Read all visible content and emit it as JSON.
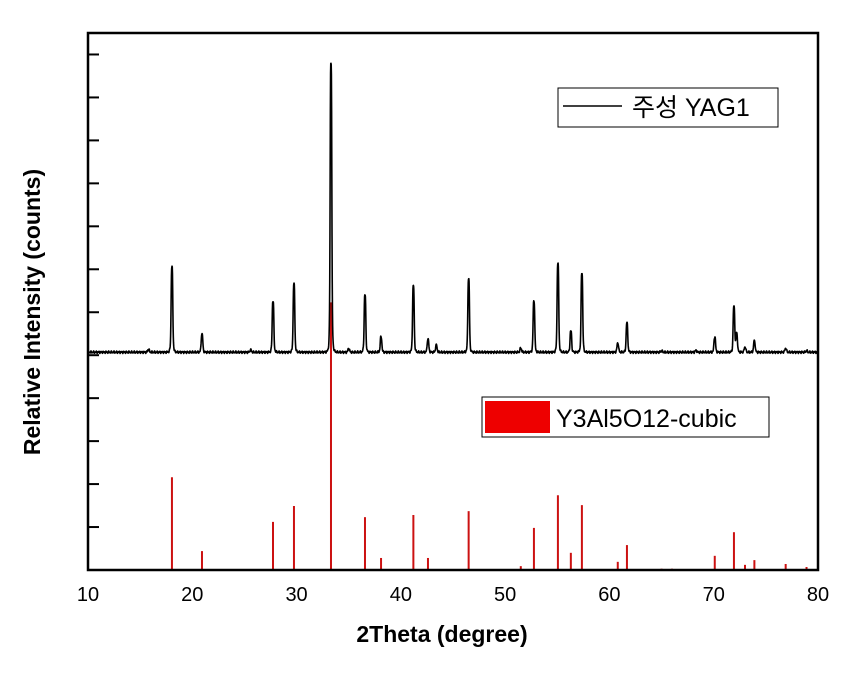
{
  "chart_data": {
    "type": "line",
    "title": "",
    "xlabel": "2Theta (degree)",
    "ylabel": "Relative Intensity (counts)",
    "xlim": [
      10,
      80
    ],
    "ylim": [
      0,
      12.5
    ],
    "x_ticks": [
      "10",
      "20",
      "30",
      "40",
      "50",
      "60",
      "70",
      "80"
    ],
    "y_tick_labels_shown": false,
    "grid": false,
    "legend_placement": "top-right and middle-right",
    "series": [
      {
        "name": "주성 YAG1",
        "kind": "line",
        "color": "#000000",
        "baseline": 5.07,
        "peaks": [
          {
            "x": 15.8,
            "y": 5.13
          },
          {
            "x": 18.05,
            "y": 7.05
          },
          {
            "x": 20.93,
            "y": 5.49
          },
          {
            "x": 25.6,
            "y": 5.12
          },
          {
            "x": 27.74,
            "y": 6.26
          },
          {
            "x": 29.75,
            "y": 6.65
          },
          {
            "x": 33.3,
            "y": 11.81
          },
          {
            "x": 35.0,
            "y": 5.15
          },
          {
            "x": 36.56,
            "y": 6.4
          },
          {
            "x": 38.1,
            "y": 5.42
          },
          {
            "x": 41.2,
            "y": 6.6
          },
          {
            "x": 42.6,
            "y": 5.37
          },
          {
            "x": 43.4,
            "y": 5.23
          },
          {
            "x": 46.5,
            "y": 6.77
          },
          {
            "x": 51.5,
            "y": 5.16
          },
          {
            "x": 52.76,
            "y": 6.26
          },
          {
            "x": 55.06,
            "y": 7.12
          },
          {
            "x": 56.3,
            "y": 5.56
          },
          {
            "x": 57.36,
            "y": 6.91
          },
          {
            "x": 60.8,
            "y": 5.28
          },
          {
            "x": 61.68,
            "y": 5.74
          },
          {
            "x": 65.0,
            "y": 5.1
          },
          {
            "x": 68.3,
            "y": 5.11
          },
          {
            "x": 70.1,
            "y": 5.42
          },
          {
            "x": 71.94,
            "y": 6.12
          },
          {
            "x": 72.2,
            "y": 5.5
          },
          {
            "x": 73.0,
            "y": 5.19
          },
          {
            "x": 73.9,
            "y": 5.33
          },
          {
            "x": 76.9,
            "y": 5.16
          },
          {
            "x": 78.9,
            "y": 5.1
          }
        ]
      },
      {
        "name": "Y3Al5O12-cubic",
        "kind": "stick",
        "color": "#e00000",
        "x": [
          18.05,
          20.93,
          27.74,
          29.75,
          33.3,
          36.56,
          38.1,
          41.2,
          42.6,
          46.5,
          51.5,
          52.76,
          55.06,
          56.3,
          57.36,
          60.8,
          61.68,
          65.0,
          66.0,
          70.1,
          71.94,
          73.0,
          73.9,
          76.9,
          78.9
        ],
        "values": [
          2.16,
          0.44,
          1.12,
          1.49,
          6.23,
          1.23,
          0.28,
          1.28,
          0.28,
          1.37,
          0.09,
          0.98,
          1.74,
          0.4,
          1.51,
          0.19,
          0.58,
          0.03,
          0.03,
          0.33,
          0.88,
          0.12,
          0.23,
          0.14,
          0.07
        ]
      }
    ]
  }
}
